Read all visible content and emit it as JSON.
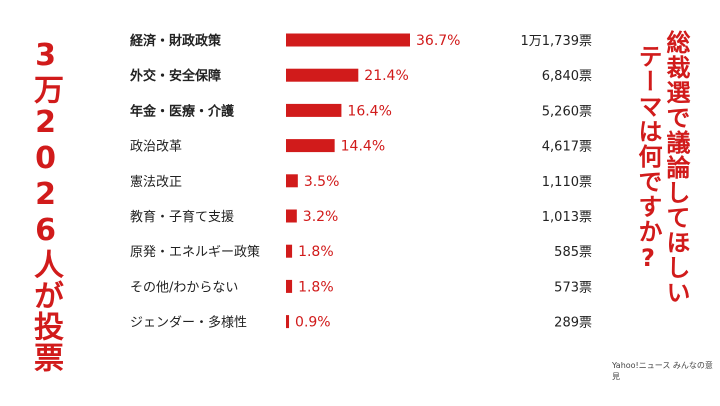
{
  "left_title": "3万2026人が投票",
  "right_title_line1": "総裁選で議論してほしい",
  "right_title_line2": "テーマは何ですか?",
  "source": "Yahoo!ニュース みんなの意見",
  "colors": {
    "accent": "#d11b1b",
    "text": "#222222"
  },
  "chart_data": {
    "type": "bar",
    "orientation": "horizontal",
    "categories": [
      "経済・財政政策",
      "外交・安全保障",
      "年金・医療・介護",
      "政治改革",
      "憲法改正",
      "教育・子育て支援",
      "原発・エネルギー政策",
      "その他/わからない",
      "ジェンダー・多様性"
    ],
    "bold_categories": [
      0,
      1,
      2
    ],
    "values": [
      36.7,
      21.4,
      16.4,
      14.4,
      3.5,
      3.2,
      1.8,
      1.8,
      0.9
    ],
    "value_labels": [
      "36.7%",
      "21.4%",
      "16.4%",
      "14.4%",
      "3.5%",
      "3.2%",
      "1.8%",
      "1.8%",
      "0.9%"
    ],
    "votes": [
      "1万1,739票",
      "6,840票",
      "5,260票",
      "4,617票",
      "1,110票",
      "1,013票",
      "585票",
      "573票",
      "289票"
    ],
    "xlim": [
      0,
      36.7
    ],
    "grid": false,
    "legend": false
  }
}
